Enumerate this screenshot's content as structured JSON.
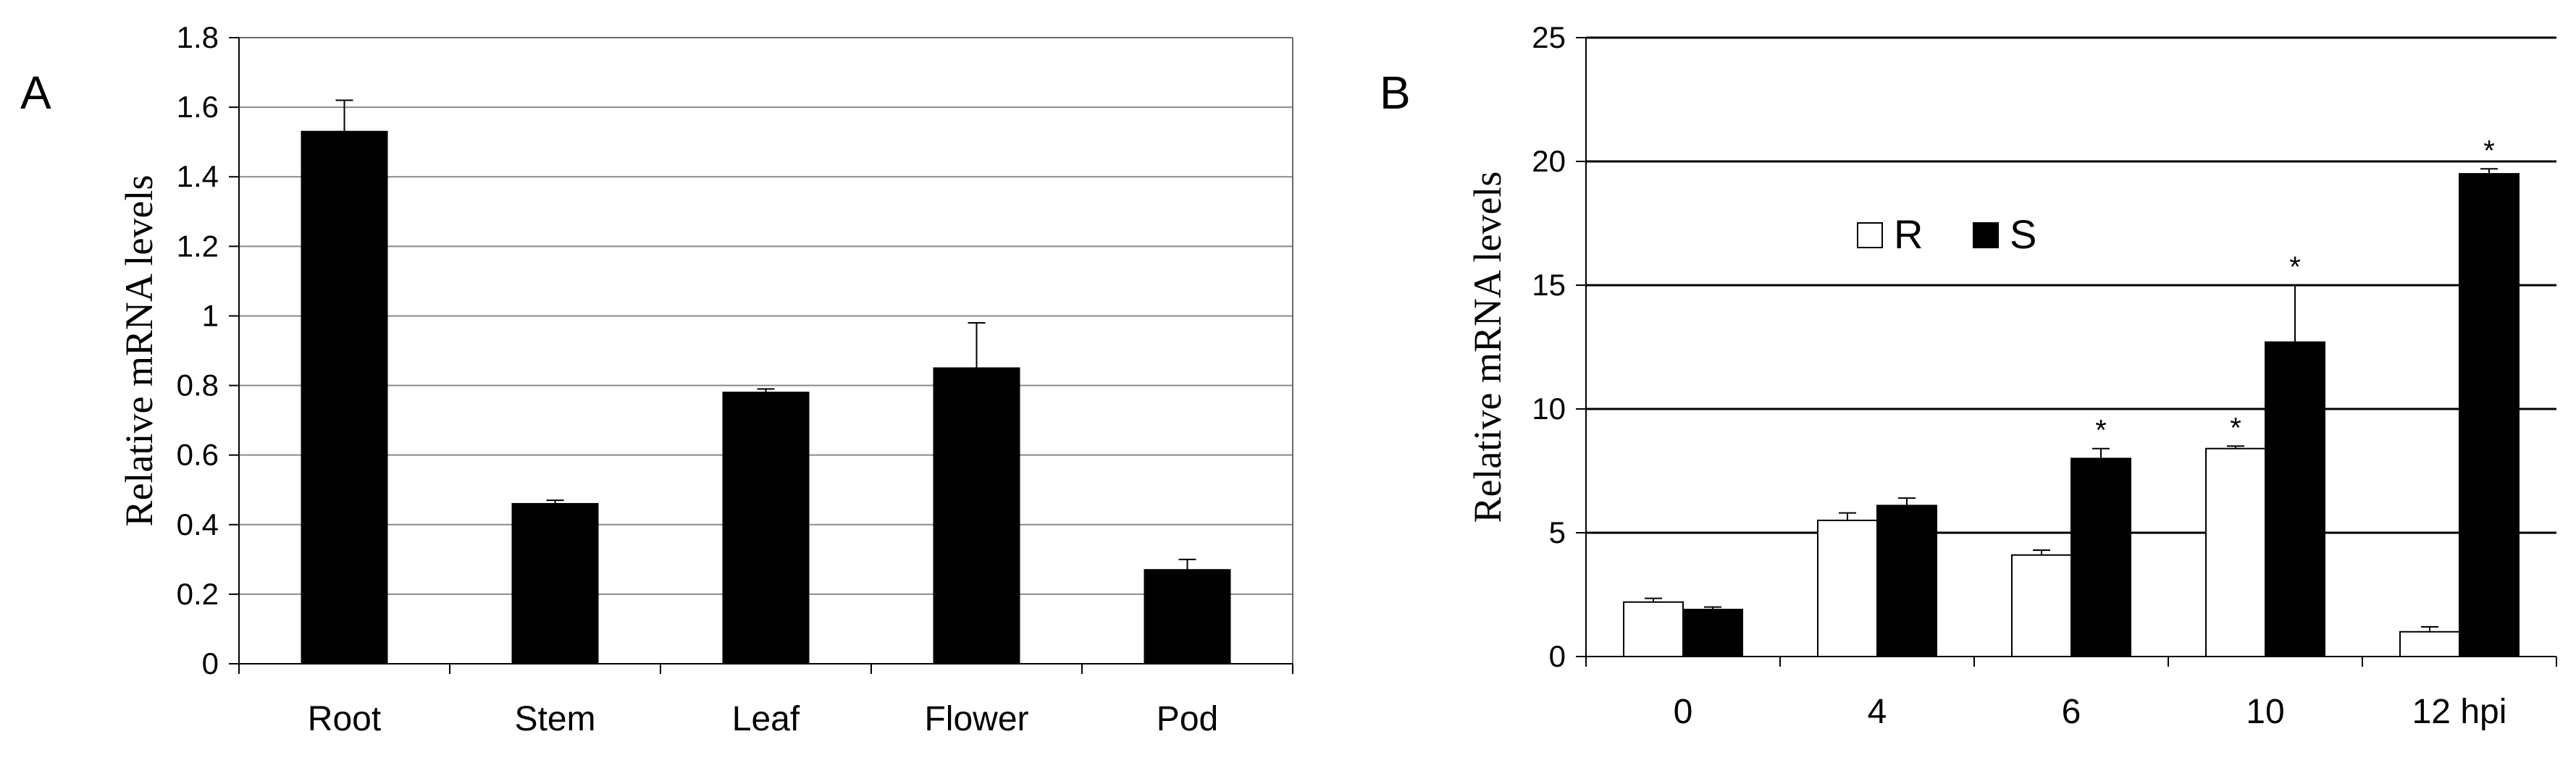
{
  "chart_data": [
    {
      "panel_label": "A",
      "type": "bar",
      "ylabel": "Relative mRNA levels",
      "xlabel": "",
      "ylim": [
        0,
        1.8
      ],
      "y_ticks": [
        "0",
        "0.2",
        "0.4",
        "0.6",
        "0.8",
        "1",
        "1.2",
        "1.4",
        "1.6",
        "1.8"
      ],
      "grid": true,
      "categories": [
        "Root",
        "Stem",
        "Leaf",
        "Flower",
        "Pod"
      ],
      "values": [
        1.53,
        0.46,
        0.78,
        0.85,
        0.27
      ],
      "errors": [
        0.09,
        0.01,
        0.01,
        0.13,
        0.03
      ],
      "colors": {
        "bar": "#000000",
        "grid": "#8a8a8a"
      }
    },
    {
      "panel_label": "B",
      "type": "bar",
      "ylabel": "Relative mRNA levels",
      "xlabel": "",
      "ylim": [
        0,
        25
      ],
      "y_ticks": [
        "0",
        "5",
        "10",
        "15",
        "20",
        "25"
      ],
      "grid": true,
      "legend_position": "upper-left",
      "categories": [
        "0",
        "4",
        "6",
        "10",
        "12 hpi"
      ],
      "series": [
        {
          "name": "R",
          "values": [
            2.2,
            5.5,
            4.1,
            8.4,
            1.0
          ],
          "errors": [
            0.15,
            0.3,
            0.2,
            0.1,
            0.2
          ],
          "significant": [
            false,
            false,
            false,
            true,
            false
          ],
          "color": "#ffffff"
        },
        {
          "name": "S",
          "values": [
            1.9,
            6.1,
            8.0,
            12.7,
            19.5
          ],
          "errors": [
            0.1,
            0.3,
            0.4,
            2.3,
            0.2
          ],
          "significant": [
            false,
            false,
            true,
            true,
            true
          ],
          "color": "#000000"
        }
      ],
      "significance_marker": "*"
    }
  ]
}
